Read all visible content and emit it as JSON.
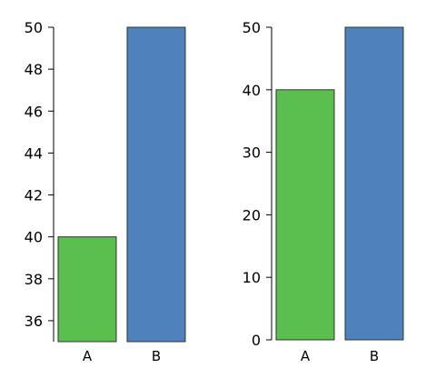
{
  "chart_data": [
    {
      "type": "bar",
      "categories": [
        "A",
        "B"
      ],
      "values": [
        40,
        50
      ],
      "colors": [
        "#5bbf4f",
        "#4f81bd"
      ],
      "ylim": [
        35,
        50
      ],
      "yticks": [
        36,
        38,
        40,
        42,
        44,
        46,
        48,
        50
      ],
      "xlabel": "",
      "ylabel": "",
      "grid": false
    },
    {
      "type": "bar",
      "categories": [
        "A",
        "B"
      ],
      "values": [
        40,
        50
      ],
      "colors": [
        "#5bbf4f",
        "#4f81bd"
      ],
      "ylim": [
        0,
        50
      ],
      "yticks": [
        0,
        10,
        20,
        30,
        40,
        50
      ],
      "xlabel": "",
      "ylabel": "",
      "grid": false
    }
  ]
}
